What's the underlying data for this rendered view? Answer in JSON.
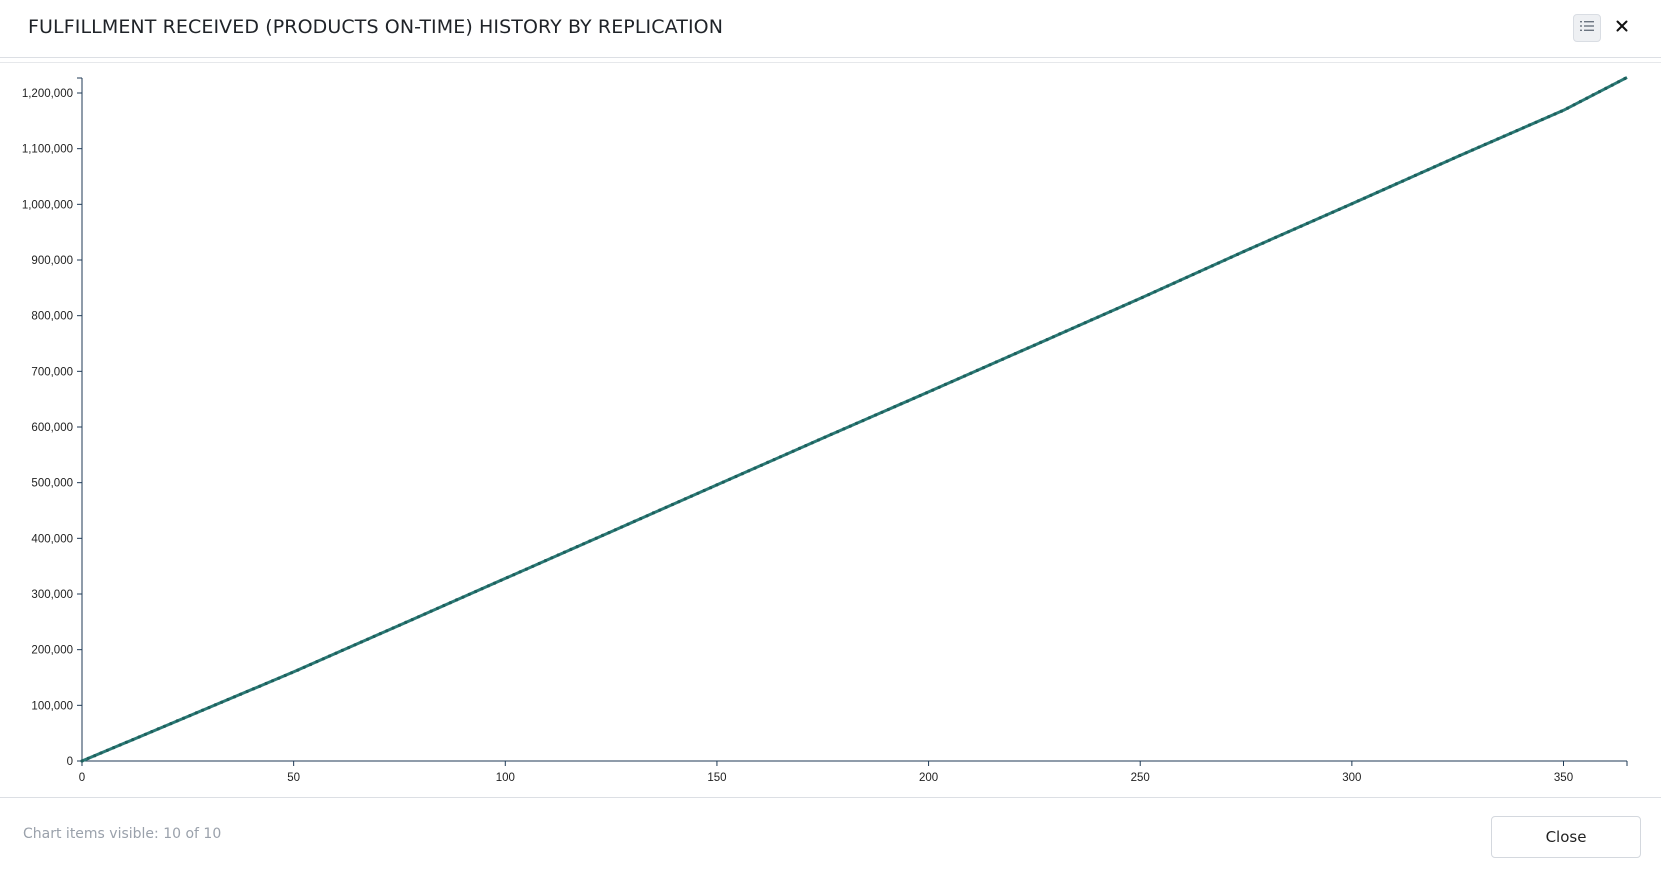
{
  "dialog": {
    "title": "FULFILLMENT RECEIVED (PRODUCTS ON-TIME) HISTORY BY REPLICATION",
    "legend_icon": "list-icon",
    "close_icon": "close-icon"
  },
  "footer": {
    "status": "Chart items visible: 10 of 10",
    "close_label": "Close"
  },
  "colors": {
    "series": "#2a7a76",
    "axis": "#1f3a56"
  },
  "chart_data": {
    "type": "line",
    "title": "",
    "xlabel": "",
    "ylabel": "",
    "xlim": [
      0,
      365
    ],
    "ylim": [
      0,
      1200000
    ],
    "x_ticks": [
      0,
      50,
      100,
      150,
      200,
      250,
      300,
      350
    ],
    "x_tick_labels": [
      "0",
      "50",
      "100",
      "150",
      "200",
      "250",
      "300",
      "350"
    ],
    "y_ticks": [
      0,
      100000,
      200000,
      300000,
      400000,
      500000,
      600000,
      700000,
      800000,
      900000,
      1000000,
      1100000,
      1200000
    ],
    "y_tick_labels": [
      "0",
      "100,000",
      "200,000",
      "300,000",
      "400,000",
      "500,000",
      "600,000",
      "700,000",
      "800,000",
      "900,000",
      "1,000,000",
      "1,100,000",
      "1,200,000"
    ],
    "grid": false,
    "series": [
      {
        "x": [
          0,
          25,
          50,
          75,
          100,
          125,
          150,
          175,
          200,
          225,
          250,
          275,
          300,
          325,
          350,
          365
        ],
        "values": [
          0,
          80000,
          160000,
          244000,
          328000,
          412000,
          496000,
          580000,
          663000,
          747000,
          831000,
          917000,
          1001000,
          1086000,
          1169000,
          1228000
        ]
      }
    ]
  }
}
